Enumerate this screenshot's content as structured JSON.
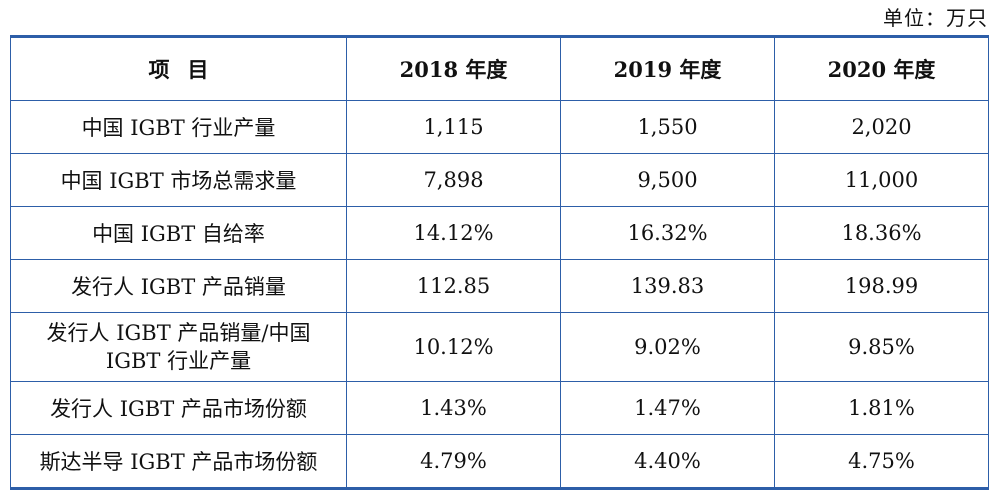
{
  "unit_note": "单位：万只",
  "table": {
    "header": {
      "item_a": "项",
      "item_b": "目",
      "years": [
        "2018 年度",
        "2019 年度",
        "2020 年度"
      ]
    },
    "rows": [
      {
        "label": "中国 IGBT 行业产量",
        "values": [
          "1,115",
          "1,550",
          "2,020"
        ]
      },
      {
        "label": "中国 IGBT 市场总需求量",
        "values": [
          "7,898",
          "9,500",
          "11,000"
        ]
      },
      {
        "label": "中国 IGBT 自给率",
        "values": [
          "14.12%",
          "16.32%",
          "18.36%"
        ]
      },
      {
        "label": "发行人 IGBT 产品销量",
        "values": [
          "112.85",
          "139.83",
          "198.99"
        ]
      },
      {
        "label_line1": "发行人 IGBT 产品销量/中国",
        "label_line2": "IGBT 行业产量",
        "values": [
          "10.12%",
          "9.02%",
          "9.85%"
        ]
      },
      {
        "label": "发行人 IGBT 产品市场份额",
        "values": [
          "1.43%",
          "1.47%",
          "1.81%"
        ]
      },
      {
        "label": "斯达半导 IGBT 产品市场份额",
        "values": [
          "4.79%",
          "4.40%",
          "4.75%"
        ]
      }
    ]
  }
}
